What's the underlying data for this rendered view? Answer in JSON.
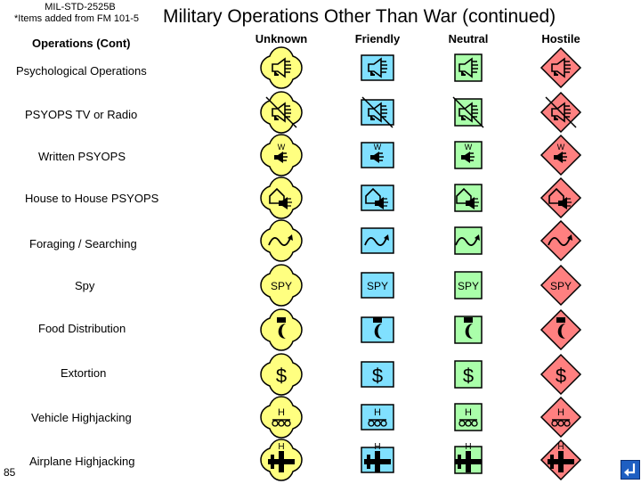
{
  "header": {
    "standard": "MIL-STD-2525B",
    "note": "*Items added from FM 101-5",
    "title": "Military Operations Other Than War (continued)",
    "subtitle": "Operations (Cont)"
  },
  "columns": [
    "Unknown",
    "Friendly",
    "Neutral",
    "Hostile"
  ],
  "affiliation_colors": {
    "unknown": "#ffff80",
    "friendly": "#80e0ff",
    "neutral": "#aaffaa",
    "hostile": "#ff8080"
  },
  "rows": [
    {
      "label": "Psychological Operations",
      "icon": "loudspeaker-icon",
      "text": ""
    },
    {
      "label": "PSYOPS TV or Radio",
      "icon": "tv-radio-speaker-icon",
      "text": ""
    },
    {
      "label": "Written PSYOPS",
      "icon": "written-speaker-icon",
      "text": "W"
    },
    {
      "label": "House to House PSYOPS",
      "icon": "house-speaker-icon",
      "text": ""
    },
    {
      "label": "Foraging / Searching",
      "icon": "searching-arrow-icon",
      "text": ""
    },
    {
      "label": "Spy",
      "icon": "spy-text-icon",
      "text": "SPY"
    },
    {
      "label": "Food Distribution",
      "icon": "crescent-bowl-icon",
      "text": ""
    },
    {
      "label": "Extortion",
      "icon": "dollar-icon",
      "text": "$"
    },
    {
      "label": "Vehicle Highjacking",
      "icon": "vehicle-hijack-icon",
      "text": "H"
    },
    {
      "label": "Airplane Highjacking",
      "icon": "airplane-hijack-icon",
      "text": "H"
    }
  ],
  "page_number": "85",
  "nav": {
    "return_icon": "return-arrow-icon"
  }
}
